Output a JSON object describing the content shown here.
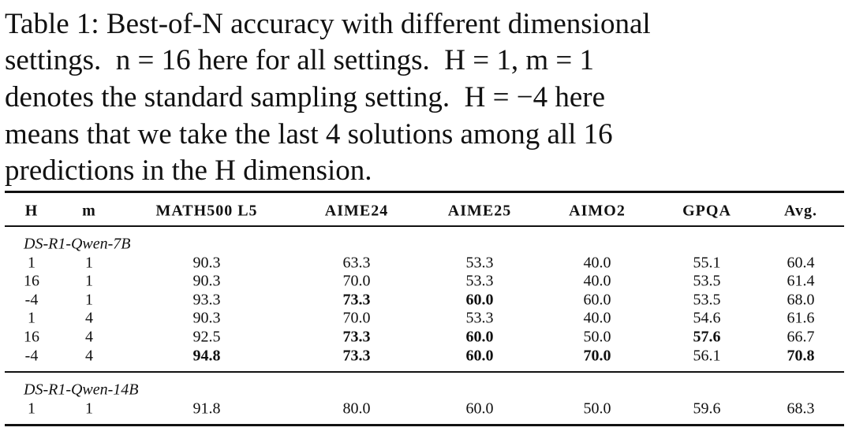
{
  "caption": {
    "lines": [
      "Table 1: Best-of-N accuracy with different dimensional",
      "settings.  n = 16 here for all settings.  H = 1, m = 1",
      "denotes the standard sampling setting.  H = −4 here",
      "means that we take the last 4 solutions among all 16",
      "predictions in the H dimension."
    ]
  },
  "table": {
    "header": [
      "H",
      "m",
      "MATH500 L5",
      "AIME24",
      "AIME25",
      "AIMO2",
      "GPQA",
      "Avg."
    ],
    "groups": [
      {
        "label": "DS-R1-Qwen-7B",
        "rows": [
          [
            "1",
            "1",
            "90.3",
            "63.3",
            "53.3",
            "40.0",
            "55.1",
            "60.4"
          ],
          [
            "16",
            "1",
            "90.3",
            "70.0",
            "53.3",
            "40.0",
            "53.5",
            "61.4"
          ],
          [
            "-4",
            "1",
            "93.3",
            "73.3",
            "60.0",
            "60.0",
            "53.5",
            "68.0"
          ],
          [
            "1",
            "4",
            "90.3",
            "70.0",
            "53.3",
            "40.0",
            "54.6",
            "61.6"
          ],
          [
            "16",
            "4",
            "92.5",
            "73.3",
            "60.0",
            "50.0",
            "57.6",
            "66.7"
          ],
          [
            "-4",
            "4",
            "94.8",
            "73.3",
            "60.0",
            "70.0",
            "56.1",
            "70.8"
          ]
        ],
        "bold": [
          [],
          [],
          [
            3,
            4
          ],
          [],
          [
            3,
            4,
            6
          ],
          [
            2,
            3,
            4,
            5,
            7
          ]
        ]
      },
      {
        "label": "DS-R1-Qwen-14B",
        "rows": [
          [
            "1",
            "1",
            "91.8",
            "80.0",
            "60.0",
            "50.0",
            "59.6",
            "68.3"
          ]
        ],
        "bold": [
          []
        ]
      }
    ]
  }
}
